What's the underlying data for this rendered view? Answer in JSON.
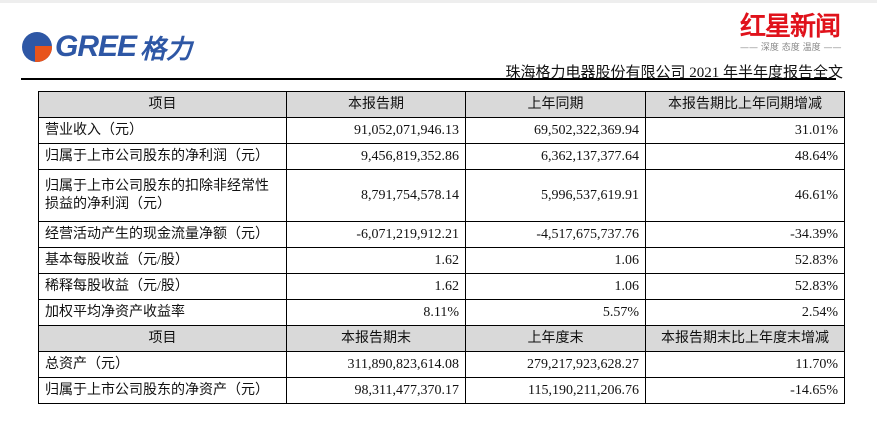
{
  "header": {
    "logo_text": "GREE",
    "logo_cn": "格力",
    "doc_title": "珠海格力电器股份有限公司 2021 年半年度报告全文"
  },
  "table1": {
    "headers": [
      "项目",
      "本报告期",
      "上年同期",
      "本报告期比上年同期增减"
    ],
    "rows": [
      [
        "营业收入（元）",
        "91,052,071,946.13",
        "69,502,322,369.94",
        "31.01%"
      ],
      [
        "归属于上市公司股东的净利润（元）",
        "9,456,819,352.86",
        "6,362,137,377.64",
        "48.64%"
      ],
      [
        "归属于上市公司股东的扣除非经常性损益的净利润（元）",
        "8,791,754,578.14",
        "5,996,537,619.91",
        "46.61%"
      ],
      [
        "经营活动产生的现金流量净额（元）",
        "-6,071,219,912.21",
        "-4,517,675,737.76",
        "-34.39%"
      ],
      [
        "基本每股收益（元/股）",
        "1.62",
        "1.06",
        "52.83%"
      ],
      [
        "稀释每股收益（元/股）",
        "1.62",
        "1.06",
        "52.83%"
      ],
      [
        "加权平均净资产收益率",
        "8.11%",
        "5.57%",
        "2.54%"
      ]
    ]
  },
  "table2": {
    "headers": [
      "项目",
      "本报告期末",
      "上年度末",
      "本报告期末比上年度末增减"
    ],
    "rows": [
      [
        "总资产（元）",
        "311,890,823,614.08",
        "279,217,923,628.27",
        "11.70%"
      ],
      [
        "归属于上市公司股东的净资产（元）",
        "98,311,477,370.17",
        "115,190,211,206.76",
        "-14.65%"
      ]
    ]
  },
  "watermark": {
    "name": "红星新闻",
    "slogan": "—— 深度 态度 温度 ——"
  }
}
